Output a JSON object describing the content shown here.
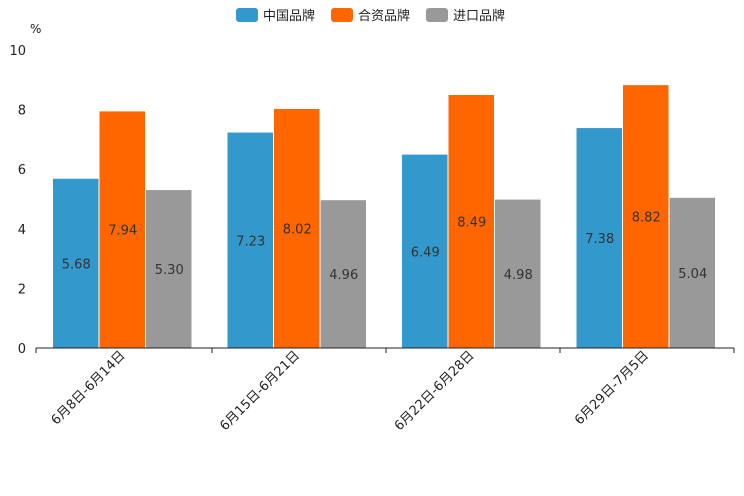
{
  "chart_data": {
    "type": "bar",
    "unit": "%",
    "categories": [
      "6月8日-6月14日",
      "6月15日-6月21日",
      "6月22日-6月28日",
      "6月29日-7月5日"
    ],
    "series": [
      {
        "name": "中国品牌",
        "color": "#3399cc",
        "values": [
          5.68,
          7.23,
          6.49,
          7.38
        ],
        "labels": [
          "5.68",
          "7.23",
          "6.49",
          "7.38"
        ]
      },
      {
        "name": "合资品牌",
        "color": "#ff6600",
        "values": [
          7.94,
          8.02,
          8.49,
          8.82
        ],
        "labels": [
          "7.94",
          "8.02",
          "8.49",
          "8.82"
        ]
      },
      {
        "name": "进口品牌",
        "color": "#999999",
        "values": [
          5.3,
          4.96,
          4.98,
          5.04
        ],
        "labels": [
          "5.30",
          "4.96",
          "4.98",
          "5.04"
        ]
      }
    ],
    "ylim": [
      0,
      10
    ],
    "yticks": [
      "0",
      "2",
      "4",
      "6",
      "8",
      "10"
    ],
    "legend_position": "top-center",
    "grid": false
  }
}
